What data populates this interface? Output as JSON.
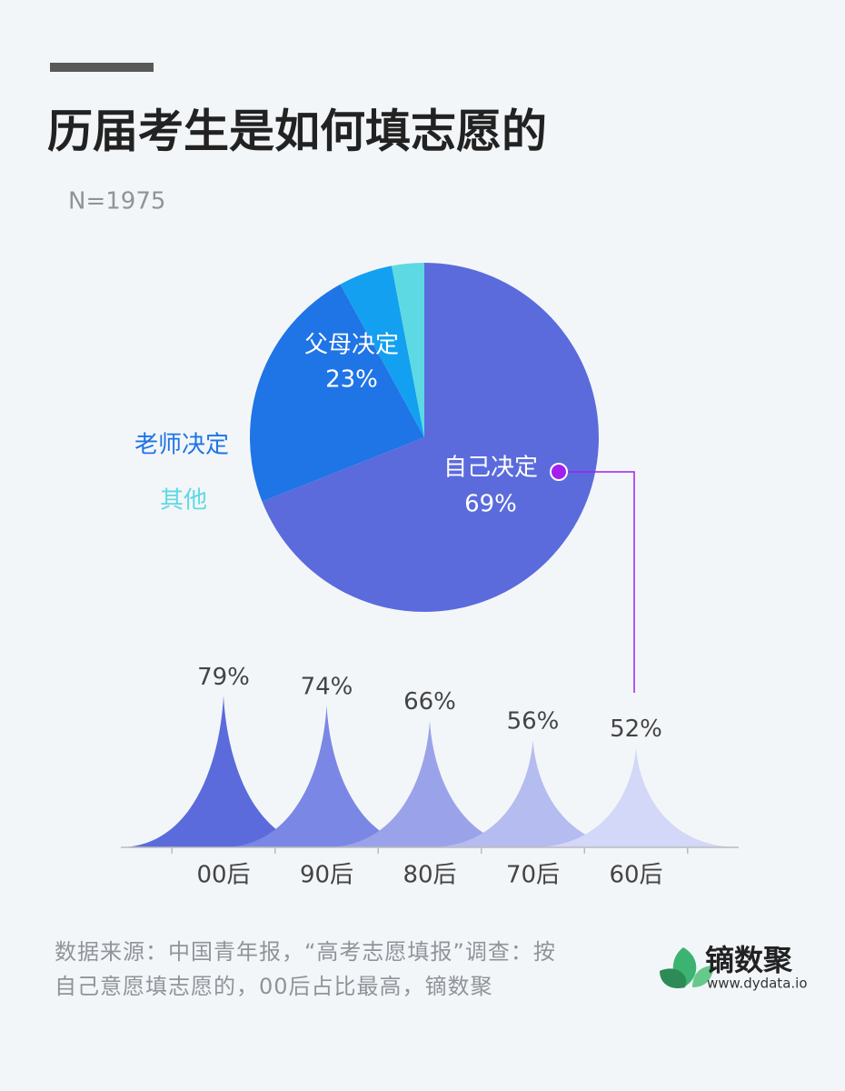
{
  "chart_data": [
    {
      "type": "pie",
      "title": "历届考生是如何填志愿的",
      "subtitle": "N=1975",
      "categories": [
        "自己决定",
        "父母决定",
        "老师决定",
        "其他"
      ],
      "values": [
        69,
        23,
        5,
        3
      ],
      "value_labels": [
        "69%",
        "23%",
        null,
        null
      ],
      "colors": [
        "#5b6bdc",
        "#1f74e6",
        "#14a0f0",
        "#5dd9e3"
      ]
    },
    {
      "type": "spike",
      "categories": [
        "00后",
        "90后",
        "80后",
        "70后",
        "60后"
      ],
      "values": [
        79,
        74,
        66,
        56,
        52
      ],
      "value_labels": [
        "79%",
        "74%",
        "66%",
        "56%",
        "52%"
      ],
      "colors": [
        "#5b6bdc",
        "#7b87e4",
        "#9aa3ea",
        "#b5bcf0",
        "#d3d7f8"
      ],
      "ylim": [
        0,
        100
      ]
    }
  ],
  "footer": {
    "source": "数据来源：中国青年报，“高考志愿填报”调查：按自己意愿填志愿的，00后占比最高，镝数聚",
    "brand": "镝数聚",
    "url": "www.dydata.io"
  }
}
